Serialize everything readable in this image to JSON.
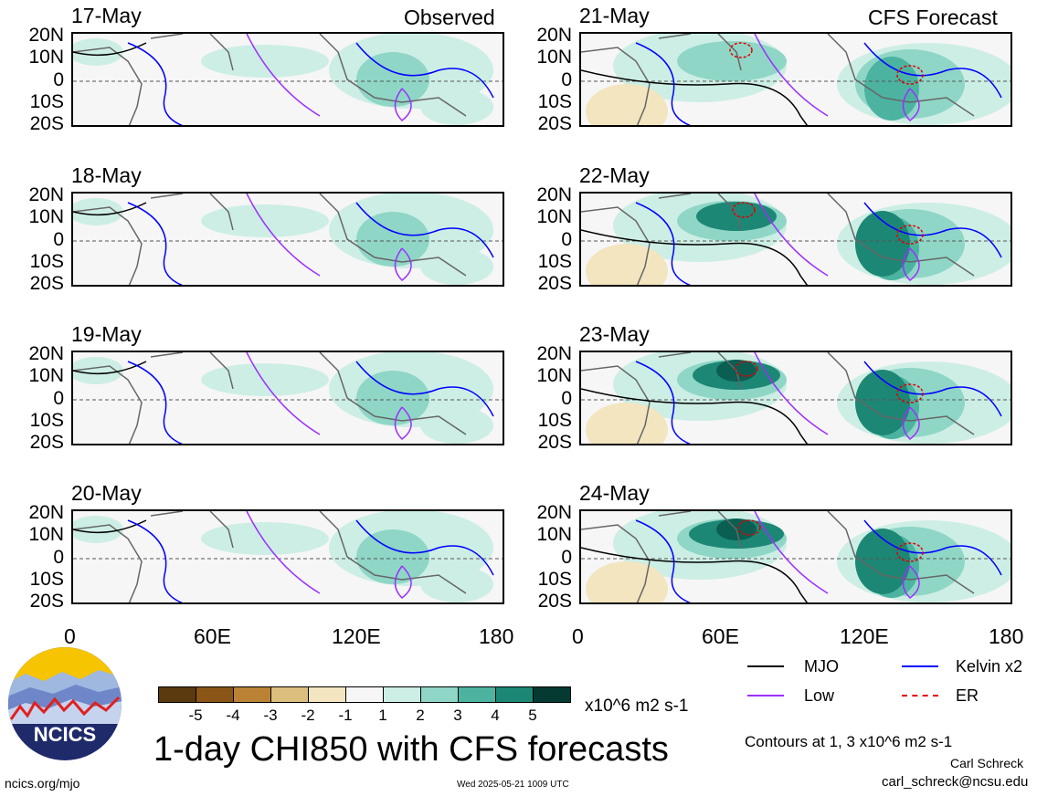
{
  "header": {
    "observed": "Observed",
    "forecast": "CFS Forecast"
  },
  "lat_labels": [
    "20N",
    "10N",
    "0",
    "10S",
    "20S"
  ],
  "lon_labels": [
    "0",
    "60E",
    "120E",
    "180"
  ],
  "panels_observed": [
    {
      "date": "17-May"
    },
    {
      "date": "18-May"
    },
    {
      "date": "19-May"
    },
    {
      "date": "20-May"
    }
  ],
  "panels_forecast": [
    {
      "date": "21-May"
    },
    {
      "date": "22-May"
    },
    {
      "date": "23-May"
    },
    {
      "date": "24-May"
    }
  ],
  "colorbar": {
    "labels": [
      "-5",
      "-4",
      "-3",
      "-2",
      "-1",
      "1",
      "2",
      "3",
      "4",
      "5"
    ],
    "colors": [
      "#5a3a0e",
      "#8a5516",
      "#bb8235",
      "#dcbf7f",
      "#f3e5bf",
      "#f6f6f6",
      "#cdeee5",
      "#8fd6c6",
      "#4cb3a1",
      "#1d8775",
      "#0b5e52",
      "#053a33"
    ],
    "units": "x10^6 m2 s-1"
  },
  "legend": {
    "items": [
      {
        "label": "MJO",
        "color": "#000000",
        "style": "solid"
      },
      {
        "label": "Kelvin x2",
        "color": "#0000ff",
        "style": "solid"
      },
      {
        "label": "Low",
        "color": "#9b30ff",
        "style": "solid"
      },
      {
        "label": "ER",
        "color": "#e00000",
        "style": "dashed"
      }
    ],
    "contours_note": "Contours at 1, 3 x10^6 m2 s-1"
  },
  "title": "1-day CHI850 with CFS forecasts",
  "footer": {
    "url": "ncics.org/mjo",
    "timestamp": "Wed 2025-05-21 1009 UTC",
    "author": "Carl Schreck",
    "email": "carl_schreck@ncsu.edu"
  },
  "logo": {
    "text": "NCICS"
  }
}
